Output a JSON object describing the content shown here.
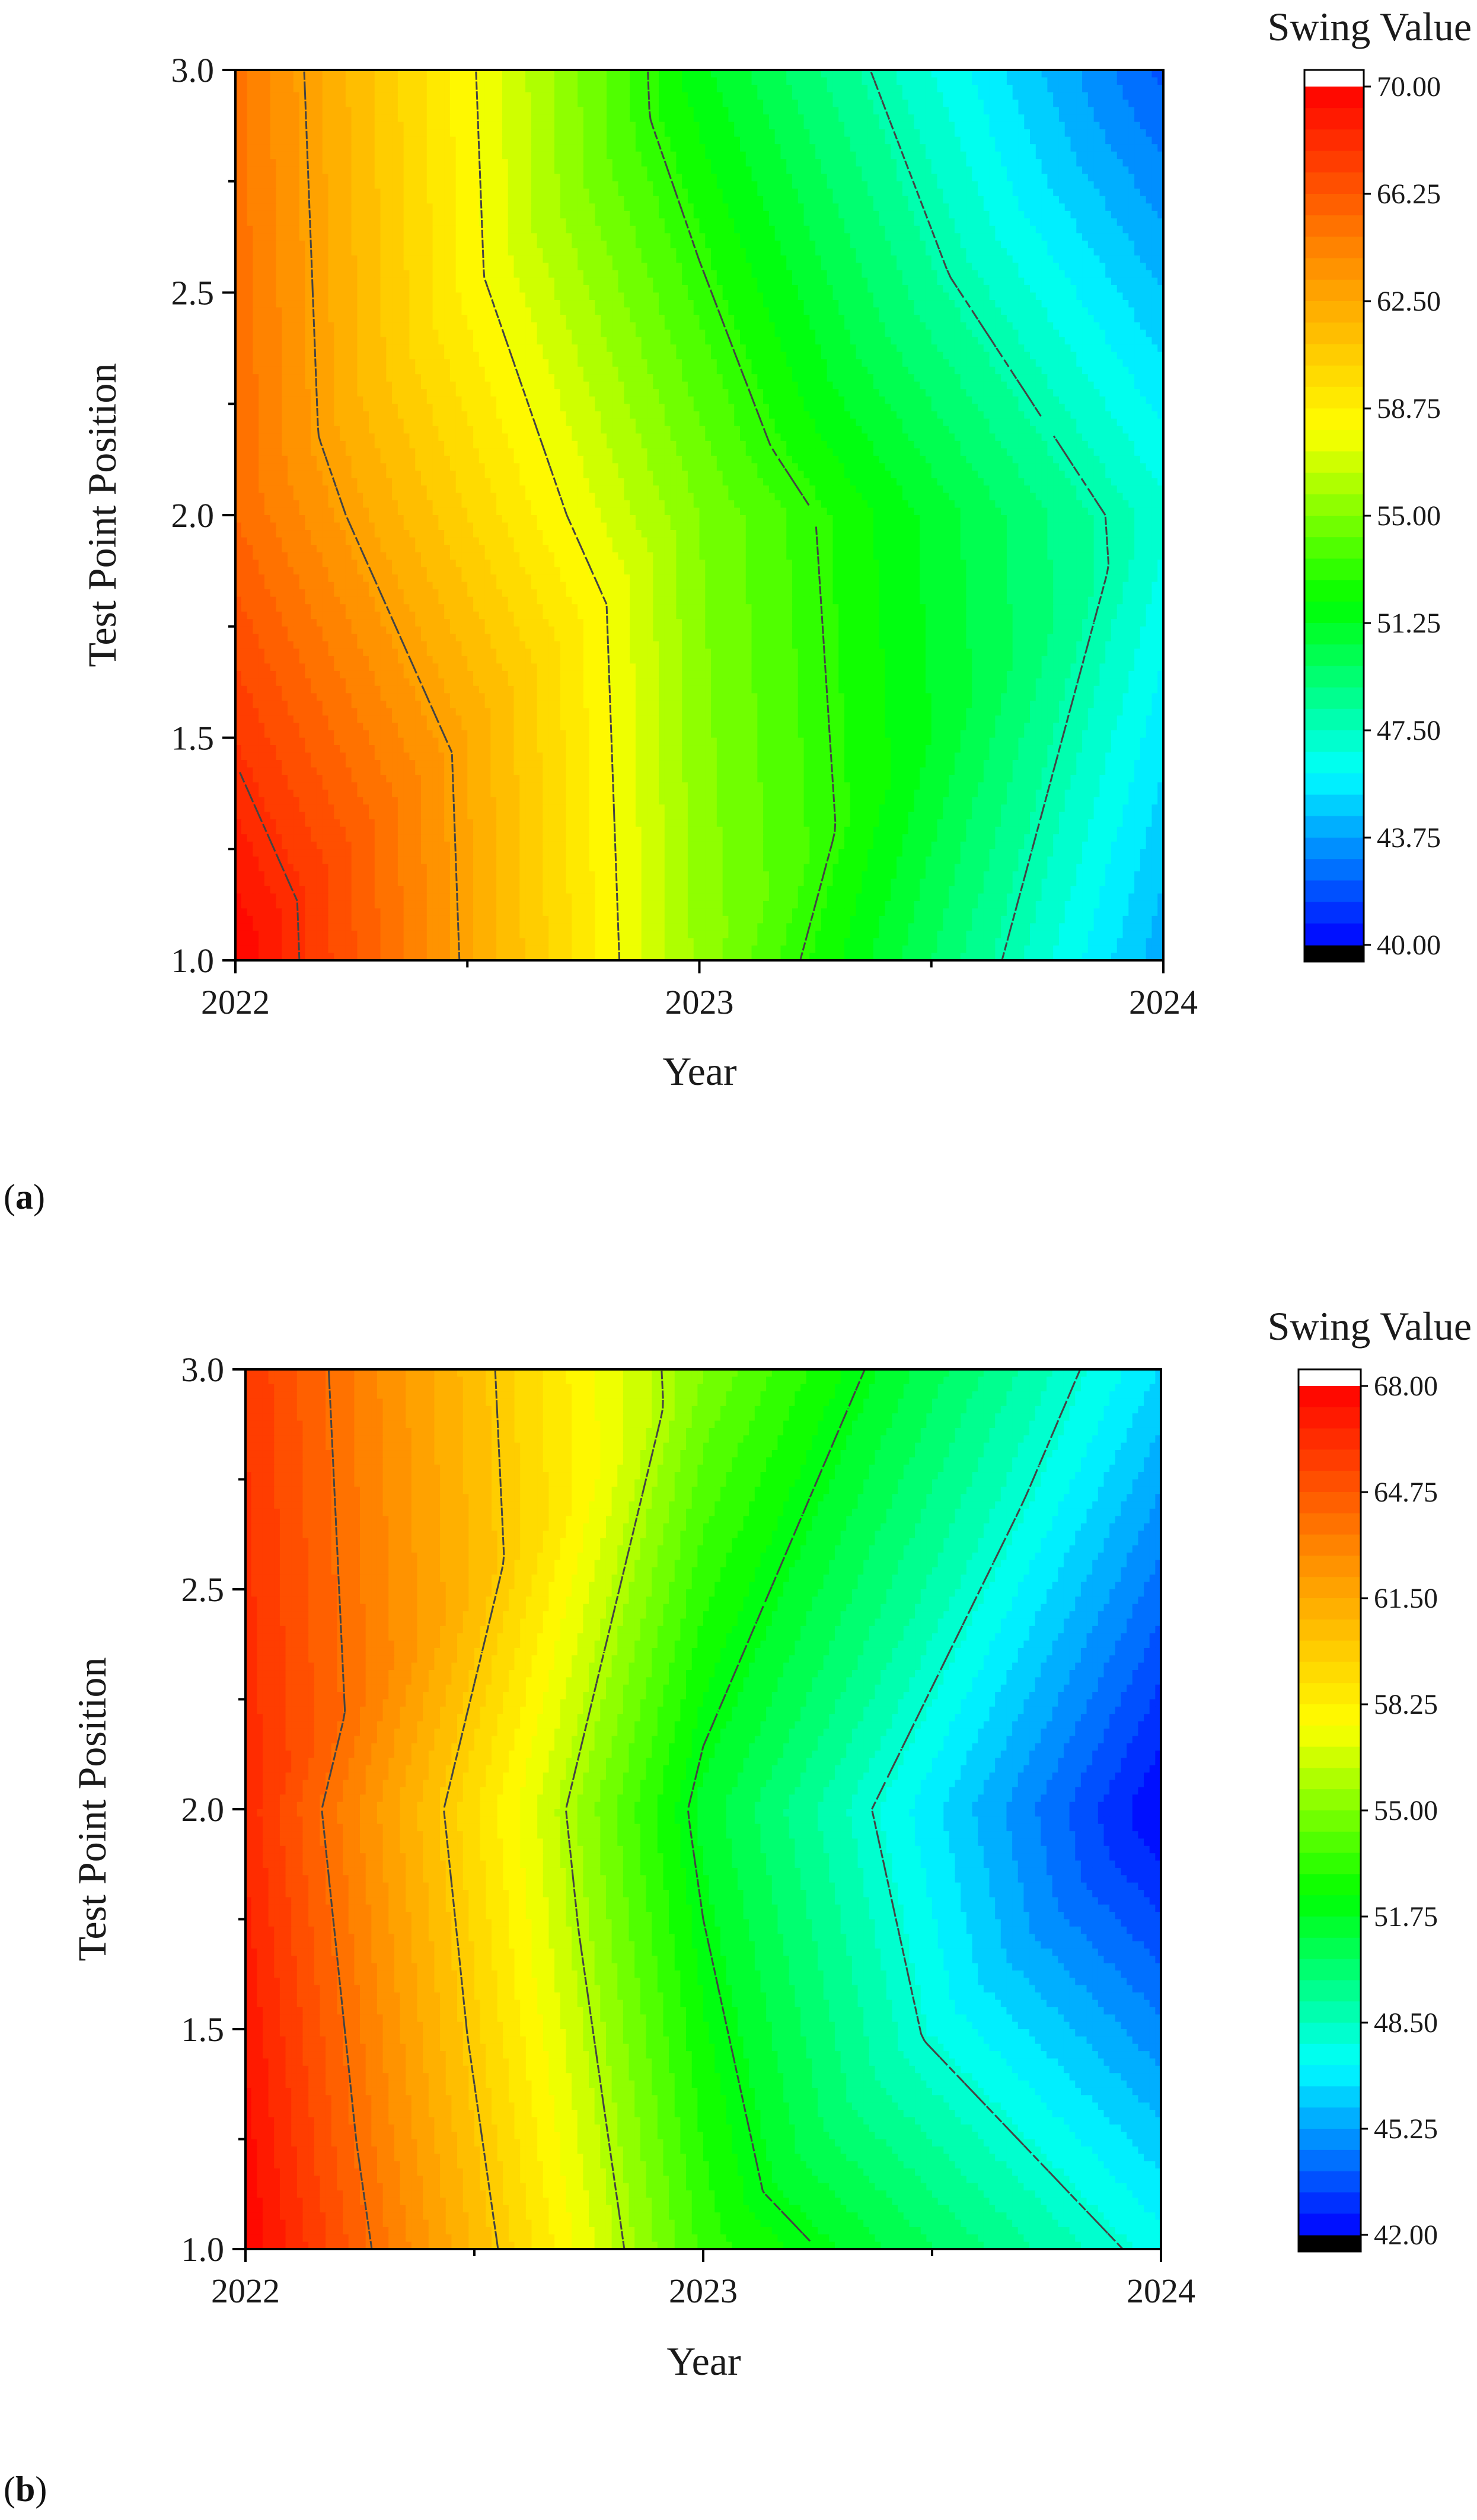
{
  "chart_data": [
    {
      "panel": "a",
      "type": "heatmap",
      "subtype": "filled-contour",
      "xlabel": "Year",
      "ylabel": "Test Point Position",
      "x": [
        2022,
        2023,
        2024
      ],
      "y": [
        1.0,
        2.0,
        3.0
      ],
      "xlim": [
        2022,
        2024
      ],
      "ylim": [
        1.0,
        3.0
      ],
      "xticks": [
        "2022",
        "2023",
        "2024"
      ],
      "yticks": [
        "1.0",
        "1.5",
        "2.0",
        "2.5",
        "3.0"
      ],
      "z": [
        [
          70.0,
          55.5,
          44.0
        ],
        [
          65.5,
          55.0,
          47.0
        ],
        [
          65.0,
          51.5,
          42.0
        ]
      ],
      "contour_levels": [
        48,
        53,
        58,
        63,
        68
      ],
      "colorbar": {
        "title": "Swing Value",
        "range": [
          40.0,
          70.0
        ],
        "tick_labels": [
          "70.00",
          "66.25",
          "62.50",
          "58.75",
          "55.00",
          "51.25",
          "47.50",
          "43.75",
          "40.00"
        ]
      }
    },
    {
      "panel": "b",
      "type": "heatmap",
      "subtype": "filled-contour",
      "xlabel": "Year",
      "ylabel": "Test Point Position",
      "x": [
        2022,
        2023,
        2024
      ],
      "y": [
        1.0,
        2.0,
        3.0
      ],
      "xlim": [
        2022,
        2024
      ],
      "ylim": [
        1.0,
        3.0
      ],
      "xticks": [
        "2022",
        "2023",
        "2024"
      ],
      "yticks": [
        "1.0",
        "1.5",
        "2.0",
        "2.5",
        "3.0"
      ],
      "z": [
        [
          68.0,
          53.5,
          47.5
        ],
        [
          66.5,
          51.5,
          42.0
        ],
        [
          66.0,
          55.0,
          46.5
        ]
      ],
      "contour_levels": [
        48,
        52,
        56,
        60,
        64
      ],
      "colorbar": {
        "title": "Swing Value",
        "range": [
          42.0,
          68.0
        ],
        "tick_labels": [
          "68.00",
          "64.75",
          "61.50",
          "58.25",
          "55.00",
          "51.75",
          "48.50",
          "45.25",
          "42.00"
        ]
      }
    }
  ],
  "panel_labels": [
    {
      "open": "(",
      "letter": "a",
      "close": ")"
    },
    {
      "open": "(",
      "letter": "b",
      "close": ")"
    }
  ],
  "colors": {
    "colormap": [
      "#000000",
      "#0000ff",
      "#00ffff",
      "#00ff00",
      "#ffff00",
      "#ff8c00",
      "#ff0000",
      "#ffffff"
    ],
    "contour_line": "#444444",
    "axis": "#000000"
  }
}
